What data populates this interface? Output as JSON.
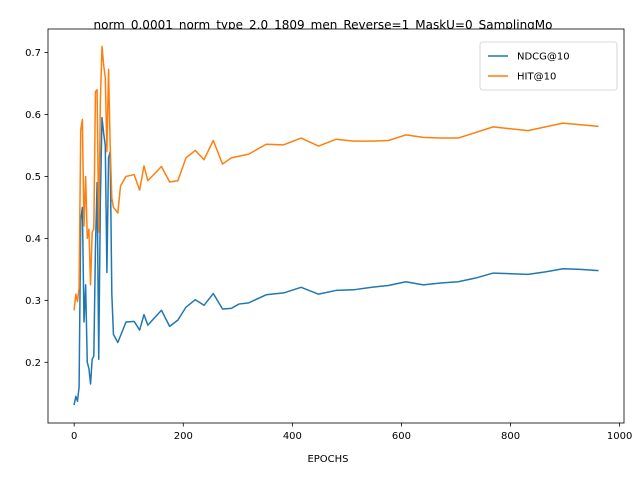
{
  "chart_data": {
    "type": "line",
    "title": "_norm_0.0001_norm_type_2.0_1809_men_Reverse=1_MaskU=0_SamplingMo",
    "xlabel": "EPOCHS",
    "ylabel": "",
    "xlim": [
      -48,
      1008
    ],
    "ylim": [
      0.102,
      0.738
    ],
    "xticks": [
      0,
      200,
      400,
      600,
      800,
      1000
    ],
    "yticks": [
      0.2,
      0.3,
      0.4,
      0.5,
      0.6,
      0.7
    ],
    "grid": false,
    "legend_position": "top-right",
    "series": [
      {
        "name": "NDCG@10",
        "color": "#1f77b4",
        "x": [
          0,
          3,
          6,
          9,
          12,
          15,
          18,
          21,
          24,
          27,
          30,
          33,
          36,
          39,
          42,
          45,
          48,
          51,
          54,
          57,
          60,
          63,
          66,
          69,
          72,
          80,
          95,
          110,
          120,
          128,
          135,
          160,
          175,
          190,
          205,
          222,
          238,
          255,
          272,
          288,
          302,
          320,
          352,
          384,
          416,
          448,
          480,
          512,
          544,
          576,
          608,
          640,
          672,
          704,
          736,
          768,
          800,
          832,
          864,
          896,
          928,
          960
        ],
        "y": [
          0.132,
          0.145,
          0.137,
          0.16,
          0.43,
          0.45,
          0.265,
          0.325,
          0.2,
          0.19,
          0.165,
          0.205,
          0.21,
          0.385,
          0.49,
          0.205,
          0.46,
          0.595,
          0.57,
          0.55,
          0.345,
          0.53,
          0.54,
          0.31,
          0.245,
          0.232,
          0.265,
          0.266,
          0.252,
          0.277,
          0.26,
          0.284,
          0.258,
          0.268,
          0.289,
          0.301,
          0.292,
          0.311,
          0.286,
          0.287,
          0.294,
          0.296,
          0.309,
          0.312,
          0.321,
          0.31,
          0.316,
          0.317,
          0.321,
          0.324,
          0.33,
          0.325,
          0.328,
          0.33,
          0.336,
          0.344,
          0.343,
          0.342,
          0.346,
          0.351,
          0.35,
          0.348
        ]
      },
      {
        "name": "HIT@10",
        "color": "#ff7f0e",
        "x": [
          0,
          3,
          6,
          9,
          12,
          15,
          18,
          21,
          24,
          27,
          30,
          33,
          36,
          39,
          42,
          45,
          48,
          51,
          54,
          57,
          60,
          63,
          66,
          69,
          72,
          80,
          85,
          95,
          110,
          120,
          128,
          135,
          160,
          175,
          190,
          205,
          222,
          238,
          255,
          272,
          288,
          320,
          352,
          384,
          416,
          448,
          480,
          512,
          544,
          576,
          608,
          640,
          672,
          704,
          768,
          832,
          896,
          960
        ],
        "y": [
          0.285,
          0.31,
          0.298,
          0.32,
          0.575,
          0.592,
          0.42,
          0.5,
          0.4,
          0.415,
          0.325,
          0.41,
          0.415,
          0.637,
          0.64,
          0.41,
          0.62,
          0.71,
          0.68,
          0.66,
          0.54,
          0.673,
          0.55,
          0.465,
          0.45,
          0.441,
          0.485,
          0.5,
          0.503,
          0.478,
          0.517,
          0.493,
          0.516,
          0.491,
          0.493,
          0.53,
          0.542,
          0.527,
          0.558,
          0.52,
          0.53,
          0.536,
          0.552,
          0.551,
          0.562,
          0.549,
          0.56,
          0.557,
          0.557,
          0.558,
          0.567,
          0.563,
          0.562,
          0.562,
          0.58,
          0.574,
          0.586,
          0.581
        ]
      }
    ]
  }
}
